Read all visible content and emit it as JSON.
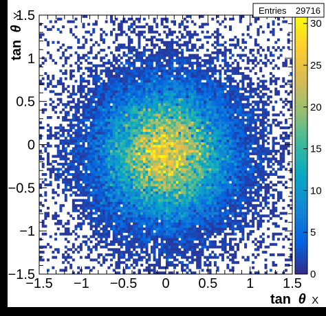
{
  "chart_data": {
    "type": "heatmap",
    "title": "",
    "xlabel": "tan θ X",
    "ylabel": "tan θ Y",
    "xlabel_main": "tan",
    "xlabel_greek": "θ",
    "xlabel_sub": "X",
    "ylabel_main": "tan",
    "ylabel_greek": "θ",
    "ylabel_sub": "Y",
    "xlim": [
      -1.5,
      1.5
    ],
    "ylim": [
      -1.5,
      1.5
    ],
    "x_ticks": [
      -1.5,
      -1,
      -0.5,
      0,
      0.5,
      1,
      1.5
    ],
    "x_tick_labels": [
      "−1.5",
      "−1",
      "−0.5",
      "0",
      "0.5",
      "1",
      "1.5"
    ],
    "y_ticks": [
      -1.5,
      -1,
      -0.5,
      0,
      0.5,
      1,
      1.5
    ],
    "y_tick_labels": [
      "−1.5",
      "−1",
      "−0.5",
      "0",
      "0.5",
      "1",
      "1.5"
    ],
    "bins": [
      100,
      100
    ],
    "distribution": {
      "shape": "2D gaussian",
      "center": [
        0.0,
        -0.1
      ],
      "sigma": [
        0.45,
        0.45
      ],
      "peak_count": 30,
      "total_entries": 29716
    },
    "colorbar": {
      "min": 0,
      "max": 31,
      "ticks": [
        0,
        5,
        10,
        15,
        20,
        25,
        30
      ],
      "tick_labels": [
        "0",
        "5",
        "10",
        "15",
        "20",
        "25",
        "30"
      ],
      "palette": [
        "#352a87",
        "#0363e1",
        "#1485d4",
        "#06a7c6",
        "#38b99e",
        "#92bf73",
        "#d9ba56",
        "#fcce2e",
        "#f9fb0e"
      ]
    },
    "stats_box": {
      "label": "Entries",
      "value": "29716"
    },
    "grid": false,
    "legend": "none"
  }
}
